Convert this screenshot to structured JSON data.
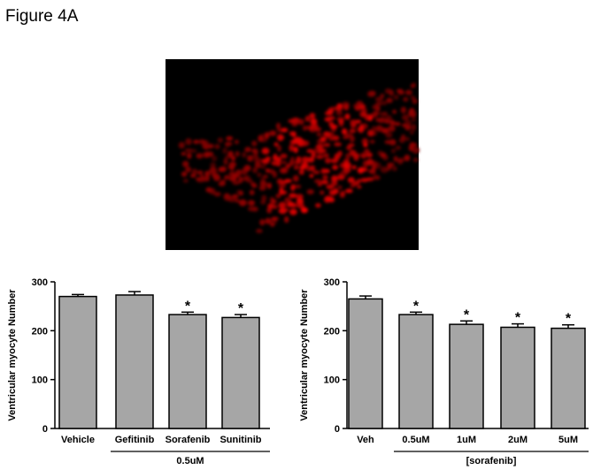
{
  "figure_label": "Figure 4A",
  "chart_data": [
    {
      "type": "bar",
      "ylabel": "Ventricular myocyte Number",
      "categories": [
        "Vehicle",
        "Gefitinib",
        "Sorafenib",
        "Sunitinib"
      ],
      "values": [
        270,
        273,
        233,
        227
      ],
      "errors": [
        4,
        7,
        5,
        6
      ],
      "significance": [
        null,
        null,
        "*",
        "*"
      ],
      "group_label": "0.5uM",
      "color": "#a6a6a6",
      "ylim": [
        0,
        300
      ],
      "yticks": [
        0,
        100,
        200,
        300
      ]
    },
    {
      "type": "bar",
      "ylabel": "Ventricular myocyte Number",
      "categories": [
        "Veh",
        "0.5uM",
        "1uM",
        "2uM",
        "5uM"
      ],
      "values": [
        265,
        233,
        213,
        207,
        205
      ],
      "errors": [
        6,
        5,
        7,
        7,
        7
      ],
      "significance": [
        null,
        "*",
        "*",
        "*",
        "*"
      ],
      "group_label": "[sorafenib]",
      "color": "#a6a6a6",
      "ylim": [
        0,
        300
      ],
      "yticks": [
        0,
        100,
        200,
        300
      ]
    }
  ]
}
